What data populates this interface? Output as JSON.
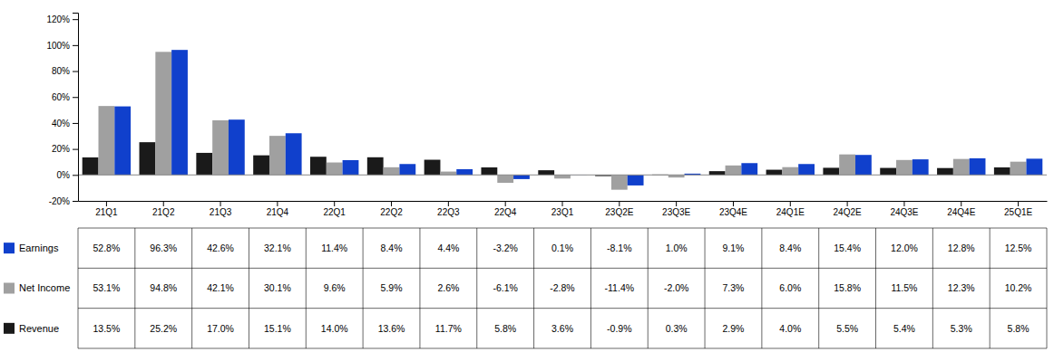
{
  "chart_data": {
    "type": "bar",
    "categories": [
      "21Q1",
      "21Q2",
      "21Q3",
      "21Q4",
      "22Q1",
      "22Q2",
      "22Q3",
      "22Q4",
      "23Q1",
      "23Q2E",
      "23Q3E",
      "23Q4E",
      "24Q1E",
      "24Q2E",
      "24Q3E",
      "24Q4E",
      "25Q1E"
    ],
    "series": [
      {
        "name": "Revenue",
        "color": "#1a1a1a",
        "values": [
          13.5,
          25.2,
          17.0,
          15.1,
          14.0,
          13.6,
          11.7,
          5.8,
          3.6,
          -0.9,
          0.3,
          2.9,
          4.0,
          5.5,
          5.4,
          5.3,
          5.8
        ],
        "value_labels": [
          "13.5%",
          "25.2%",
          "17.0%",
          "15.1%",
          "14.0%",
          "13.6%",
          "11.7%",
          "5.8%",
          "3.6%",
          "-0.9%",
          "0.3%",
          "2.9%",
          "4.0%",
          "5.5%",
          "5.4%",
          "5.3%",
          "5.8%"
        ]
      },
      {
        "name": "Net Income",
        "color": "#a0a0a0",
        "values": [
          53.1,
          94.8,
          42.1,
          30.1,
          9.6,
          5.9,
          2.6,
          -6.1,
          -2.8,
          -11.4,
          -2.0,
          7.3,
          6.0,
          15.8,
          11.5,
          12.3,
          10.2
        ],
        "value_labels": [
          "53.1%",
          "94.8%",
          "42.1%",
          "30.1%",
          "9.6%",
          "5.9%",
          "2.6%",
          "-6.1%",
          "-2.8%",
          "-11.4%",
          "-2.0%",
          "7.3%",
          "6.0%",
          "15.8%",
          "11.5%",
          "12.3%",
          "10.2%"
        ]
      },
      {
        "name": "Earnings",
        "color": "#1040cc",
        "values": [
          52.8,
          96.3,
          42.6,
          32.1,
          11.4,
          8.4,
          4.4,
          -3.2,
          0.1,
          -8.1,
          1.0,
          9.1,
          8.4,
          15.4,
          12.0,
          12.8,
          12.5
        ],
        "value_labels": [
          "52.8%",
          "96.3%",
          "42.6%",
          "32.1%",
          "11.4%",
          "8.4%",
          "4.4%",
          "-3.2%",
          "0.1%",
          "-8.1%",
          "1.0%",
          "9.1%",
          "8.4%",
          "15.4%",
          "12.0%",
          "12.8%",
          "12.5%"
        ]
      }
    ],
    "ylim": [
      -20,
      125
    ],
    "yticks": [
      {
        "value": -20,
        "label": "-20%"
      },
      {
        "value": 0,
        "label": "0%"
      },
      {
        "value": 20,
        "label": "20%"
      },
      {
        "value": 40,
        "label": "40%"
      },
      {
        "value": 60,
        "label": "60%"
      },
      {
        "value": 80,
        "label": "80%"
      },
      {
        "value": 100,
        "label": "100%"
      },
      {
        "value": 120,
        "label": "120%"
      }
    ],
    "grid": false
  }
}
